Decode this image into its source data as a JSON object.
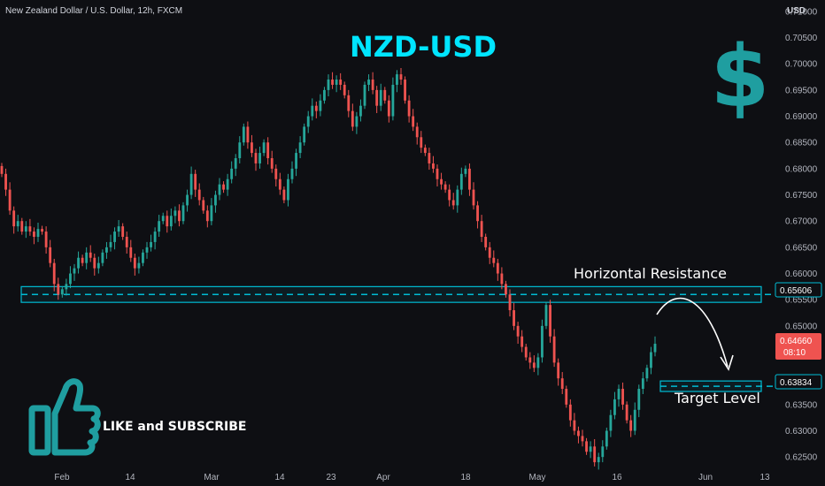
{
  "header": {
    "symbol_line": "New Zealand Dollar / U.S. Dollar, 12h, FXCM",
    "currency_label": "USD"
  },
  "overlay": {
    "title": "NZD-USD",
    "dollar_symbol": "$",
    "like_text": "LIKE and SUBSCRIBE",
    "icon": "thumbs-up-icon",
    "resistance_label": "Horizontal Resistance",
    "target_label": "Target Level"
  },
  "colors": {
    "background": "#0e0f13",
    "up": "#26a69a",
    "down": "#ef5350",
    "accent": "#00bcd4",
    "title": "#00e5ff",
    "axis_text": "#b2b5be"
  },
  "chart_data": {
    "type": "candlestick",
    "ylim": [
      0.6225,
      0.7115
    ],
    "y_ticks": [
      "0.62500",
      "0.63000",
      "0.63500",
      "0.64000",
      "0.64500",
      "0.65000",
      "0.65500",
      "0.66000",
      "0.66500",
      "0.67000",
      "0.67500",
      "0.68000",
      "0.68500",
      "0.69000",
      "0.69500",
      "0.70000",
      "0.70500",
      "0.71000"
    ],
    "x_labels": [
      "Feb",
      "14",
      "Mar",
      "14",
      "23",
      "Apr",
      "18",
      "May",
      "16",
      "Jun",
      "13"
    ],
    "price_tags": {
      "resistance": "0.65606",
      "current": "0.64660",
      "countdown": "08:10",
      "target": "0.63834"
    },
    "resistance_zone": [
      0.6545,
      0.6575
    ],
    "target_zone": [
      0.6375,
      0.6395
    ],
    "closes": [
      0.679,
      0.676,
      0.672,
      0.669,
      0.67,
      0.668,
      0.669,
      0.668,
      0.667,
      0.6685,
      0.668,
      0.665,
      0.662,
      0.658,
      0.656,
      0.657,
      0.658,
      0.66,
      0.661,
      0.663,
      0.662,
      0.664,
      0.663,
      0.661,
      0.662,
      0.664,
      0.665,
      0.666,
      0.668,
      0.669,
      0.667,
      0.665,
      0.663,
      0.661,
      0.662,
      0.664,
      0.665,
      0.666,
      0.668,
      0.67,
      0.671,
      0.669,
      0.671,
      0.672,
      0.67,
      0.673,
      0.675,
      0.679,
      0.676,
      0.674,
      0.672,
      0.67,
      0.673,
      0.675,
      0.677,
      0.676,
      0.678,
      0.68,
      0.682,
      0.685,
      0.688,
      0.685,
      0.683,
      0.681,
      0.683,
      0.685,
      0.682,
      0.68,
      0.678,
      0.676,
      0.674,
      0.678,
      0.68,
      0.683,
      0.685,
      0.688,
      0.69,
      0.692,
      0.691,
      0.693,
      0.695,
      0.697,
      0.696,
      0.697,
      0.696,
      0.694,
      0.691,
      0.688,
      0.69,
      0.692,
      0.696,
      0.697,
      0.695,
      0.692,
      0.695,
      0.693,
      0.69,
      0.696,
      0.698,
      0.697,
      0.693,
      0.69,
      0.688,
      0.686,
      0.684,
      0.683,
      0.681,
      0.68,
      0.678,
      0.677,
      0.676,
      0.674,
      0.673,
      0.676,
      0.679,
      0.68,
      0.676,
      0.673,
      0.67,
      0.667,
      0.665,
      0.663,
      0.662,
      0.66,
      0.658,
      0.656,
      0.653,
      0.65,
      0.648,
      0.646,
      0.644,
      0.643,
      0.642,
      0.644,
      0.65,
      0.654,
      0.648,
      0.643,
      0.64,
      0.638,
      0.635,
      0.632,
      0.63,
      0.629,
      0.628,
      0.626,
      0.627,
      0.624,
      0.625,
      0.627,
      0.63,
      0.633,
      0.636,
      0.638,
      0.635,
      0.632,
      0.63,
      0.634,
      0.638,
      0.64,
      0.642,
      0.645,
      0.6466
    ]
  }
}
